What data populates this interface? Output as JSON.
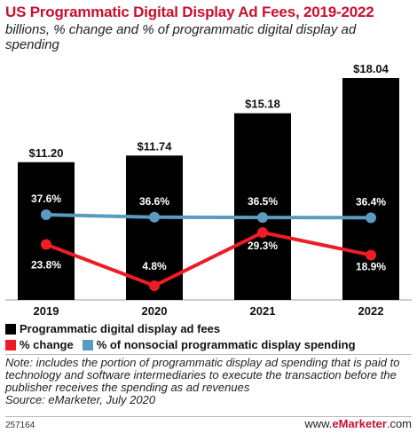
{
  "header": {
    "title": "US Programmatic Digital Display Ad Fees, 2019-2022",
    "subtitle": "billions, % change and % of programmatic digital display ad spending"
  },
  "legend": {
    "bars": "Programmatic digital display ad fees",
    "change": "% change",
    "share": "% of nonsocial programmatic display spending"
  },
  "colors": {
    "bars": "#000000",
    "change": "#ee1c25",
    "share": "#5b9bbf",
    "title": "#c8102e"
  },
  "chart_data": {
    "type": "bar",
    "categories": [
      "2019",
      "2020",
      "2021",
      "2022"
    ],
    "series": [
      {
        "name": "Programmatic digital display ad fees",
        "type": "bar",
        "values": [
          11.2,
          11.74,
          15.18,
          18.04
        ],
        "labels": [
          "$11.20",
          "$11.74",
          "$15.18",
          "$18.04"
        ]
      },
      {
        "name": "% change",
        "type": "line",
        "values": [
          23.8,
          4.8,
          29.3,
          18.9
        ],
        "labels": [
          "23.8%",
          "4.8%",
          "29.3%",
          "18.9%"
        ]
      },
      {
        "name": "% of nonsocial programmatic display spending",
        "type": "line",
        "values": [
          37.6,
          36.6,
          36.5,
          36.4
        ],
        "labels": [
          "37.6%",
          "36.6%",
          "36.5%",
          "36.4%"
        ]
      }
    ]
  },
  "footer": {
    "note": "Note: includes the portion of programmatic display ad spending that is paid to technology and software intermediaries to execute the transaction before the publisher receives the spending as ad revenues",
    "source": "Source: eMarketer, July 2020",
    "id": "257164",
    "brand_prefix": "www.",
    "brand_name": "eMarketer",
    "brand_suffix": ".com"
  }
}
